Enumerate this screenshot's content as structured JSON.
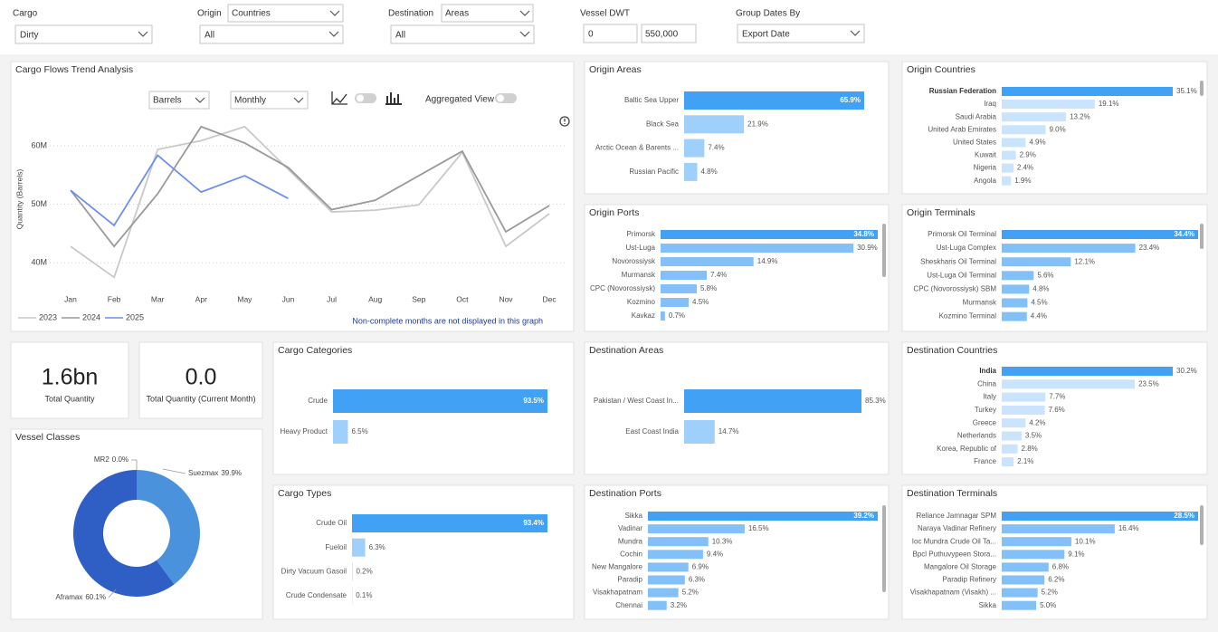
{
  "filters": {
    "cargo": {
      "label": "Cargo",
      "value": "Dirty"
    },
    "origin": {
      "label": "Origin",
      "mode": "Countries",
      "value": "All"
    },
    "destination": {
      "label": "Destination",
      "mode": "Areas",
      "value": "All"
    },
    "vessel_dwt": {
      "label": "Vessel DWT",
      "min": "0",
      "max": "550,000"
    },
    "group_dates_by": {
      "label": "Group Dates By",
      "value": "Export Date"
    }
  },
  "kpis": [
    {
      "value": "1.6bn",
      "label": "Total Quantity"
    },
    {
      "value": "0.0",
      "label": "Total Quantity (Current Month)"
    }
  ],
  "chart_data": [
    {
      "type": "line",
      "title": "Cargo Flows Trend Analysis",
      "controls": {
        "unit": "Barrels",
        "period": "Monthly",
        "toggle_label": "Aggregated View"
      },
      "ylabel": "Quantity (Barrels)",
      "note": "Non-complete months are not displayed in this graph",
      "categories": [
        "Jan",
        "Feb",
        "Mar",
        "Apr",
        "May",
        "Jun",
        "Jul",
        "Aug",
        "Sep",
        "Oct",
        "Nov",
        "Dec"
      ],
      "series": [
        {
          "name": "2023",
          "color": "#c9c9c9",
          "values": [
            42800000,
            37500000,
            59400000,
            60900000,
            63300000,
            56000000,
            48700000,
            49000000,
            49900000,
            58900000,
            42800000,
            48400000
          ]
        },
        {
          "name": "2024",
          "color": "#9a9a9a",
          "values": [
            52400000,
            42800000,
            51800000,
            63300000,
            60500000,
            56300000,
            49100000,
            50700000,
            54900000,
            59100000,
            45300000,
            49800000
          ]
        },
        {
          "name": "2025",
          "color": "#6d8ef0",
          "values": [
            52400000,
            46400000,
            58400000,
            52100000,
            54900000,
            51000000,
            null,
            null,
            null,
            null,
            null,
            null
          ]
        }
      ],
      "ylim": [
        36000000,
        67000000
      ],
      "yticks": [
        {
          "value": 40000000,
          "label": "40M"
        },
        {
          "value": 50000000,
          "label": "50M"
        },
        {
          "value": 60000000,
          "label": "60M"
        }
      ],
      "grid": true
    },
    {
      "type": "bar",
      "title": "Origin Areas",
      "categories": [
        "Baltic Sea Upper",
        "Black Sea",
        "Arctic Ocean & Barents ...",
        "Russian Pacific"
      ],
      "values": [
        65.9,
        21.9,
        7.4,
        4.8
      ],
      "value_labels": [
        "65.9%",
        "21.9%",
        "7.4%",
        "4.8%"
      ],
      "color": "#9fd0fb",
      "highlight_color": "#41a1f4"
    },
    {
      "type": "bar",
      "title": "Origin Countries",
      "categories": [
        "Russian Federation",
        "Iraq",
        "Saudi Arabia",
        "United Arab Emirates",
        "United States",
        "Kuwait",
        "Nigeria",
        "Angola"
      ],
      "values": [
        35.1,
        19.1,
        13.2,
        9.0,
        4.9,
        2.9,
        2.4,
        1.9
      ],
      "value_labels": [
        "35.1%",
        "19.1%",
        "13.2%",
        "9.0%",
        "4.9%",
        "2.9%",
        "2.4%",
        "1.9%"
      ],
      "color": "#c9e4fc",
      "highlight_color": "#41a1f4"
    },
    {
      "type": "bar",
      "title": "Origin Ports",
      "categories": [
        "Primorsk",
        "Ust-Luga",
        "Novorossiysk",
        "Murmansk",
        "CPC (Novorossiysk)",
        "Kozmino",
        "Kavkaz"
      ],
      "values": [
        34.8,
        30.9,
        14.9,
        7.4,
        5.8,
        4.5,
        0.7
      ],
      "value_labels": [
        "34.8%",
        "30.9%",
        "14.9%",
        "7.4%",
        "5.8%",
        "4.5%",
        "0.7%"
      ],
      "color": "#82c0f7",
      "highlight_color": "#41a1f4"
    },
    {
      "type": "bar",
      "title": "Origin Terminals",
      "categories": [
        "Primorsk Oil Terminal",
        "Ust-Luga Complex",
        "Sheskharis Oil Terminal",
        "Ust-Luga Oil Terminal",
        "CPC (Novorossiysk) SBM",
        "Murmansk",
        "Kozmino Terminal"
      ],
      "values": [
        34.4,
        23.4,
        12.1,
        5.6,
        4.8,
        4.5,
        4.4
      ],
      "value_labels": [
        "34.4%",
        "23.4%",
        "12.1%",
        "5.6%",
        "4.8%",
        "4.5%",
        "4.4%"
      ],
      "color": "#82c0f7",
      "highlight_color": "#41a1f4"
    },
    {
      "type": "donut",
      "title": "Vessel Classes",
      "categories": [
        "Suezmax",
        "Aframax",
        "MR2"
      ],
      "values": [
        39.9,
        60.1,
        0.0
      ],
      "value_labels": [
        "39.9%",
        "60.1%",
        "0.0%"
      ],
      "colors": [
        "#4a93dc",
        "#2f5ec4",
        "#1f3f91"
      ]
    },
    {
      "type": "bar",
      "title": "Cargo Categories",
      "categories": [
        "Crude",
        "Heavy Product"
      ],
      "values": [
        93.5,
        6.5
      ],
      "value_labels": [
        "93.5%",
        "6.5%"
      ],
      "color": "#9fd0fb",
      "highlight_color": "#41a1f4"
    },
    {
      "type": "bar",
      "title": "Cargo Types",
      "categories": [
        "Crude Oil",
        "Fueloil",
        "Dirty Vacuum Gasoil",
        "Crude Condensate"
      ],
      "values": [
        93.4,
        6.3,
        0.2,
        0.1
      ],
      "value_labels": [
        "93.4%",
        "6.3%",
        "0.2%",
        "0.1%"
      ],
      "color": "#9fd0fb",
      "highlight_color": "#41a1f4"
    },
    {
      "type": "bar",
      "title": "Destination Areas",
      "categories": [
        "Pakistan / West Coast In...",
        "East Coast India"
      ],
      "values": [
        85.3,
        14.7
      ],
      "value_labels": [
        "85.3%",
        "14.7%"
      ],
      "color": "#9fd0fb",
      "highlight_color": "#41a1f4"
    },
    {
      "type": "bar",
      "title": "Destination Countries",
      "categories": [
        "India",
        "China",
        "Italy",
        "Turkey",
        "Greece",
        "Netherlands",
        "Korea, Republic of",
        "France"
      ],
      "values": [
        30.2,
        23.5,
        7.7,
        7.6,
        4.2,
        3.5,
        2.8,
        2.1
      ],
      "value_labels": [
        "30.2%",
        "23.5%",
        "7.7%",
        "7.6%",
        "4.2%",
        "3.5%",
        "2.8%",
        "2.1%"
      ],
      "color": "#c9e4fc",
      "highlight_color": "#41a1f4"
    },
    {
      "type": "bar",
      "title": "Destination Ports",
      "categories": [
        "Sikka",
        "Vadinar",
        "Mundra",
        "Cochin",
        "New Mangalore",
        "Paradip",
        "Visakhapatnam",
        "Chennai"
      ],
      "values": [
        39.2,
        16.5,
        10.3,
        9.4,
        6.9,
        6.3,
        5.2,
        3.2
      ],
      "value_labels": [
        "39.2%",
        "16.5%",
        "10.3%",
        "9.4%",
        "6.9%",
        "6.3%",
        "5.2%",
        "3.2%"
      ],
      "color": "#82c0f7",
      "highlight_color": "#41a1f4"
    },
    {
      "type": "bar",
      "title": "Destination Terminals",
      "categories": [
        "Reliance Jamnagar SPM",
        "Naraya Vadinar Refinery",
        "Ioc Mundra Crude Oil Ta...",
        "Bpcl Puthuvypeen Stora...",
        "Mangalore Oil Storage",
        "Paradip Refinery",
        "Visakhapatnam (Visakh) ...",
        "Sikka"
      ],
      "values": [
        28.5,
        16.4,
        10.1,
        9.1,
        6.8,
        6.2,
        5.2,
        5.0
      ],
      "value_labels": [
        "28.5%",
        "16.4%",
        "10.1%",
        "9.1%",
        "6.8%",
        "6.2%",
        "5.2%",
        "5.0%"
      ],
      "color": "#82c0f7",
      "highlight_color": "#41a1f4"
    }
  ]
}
